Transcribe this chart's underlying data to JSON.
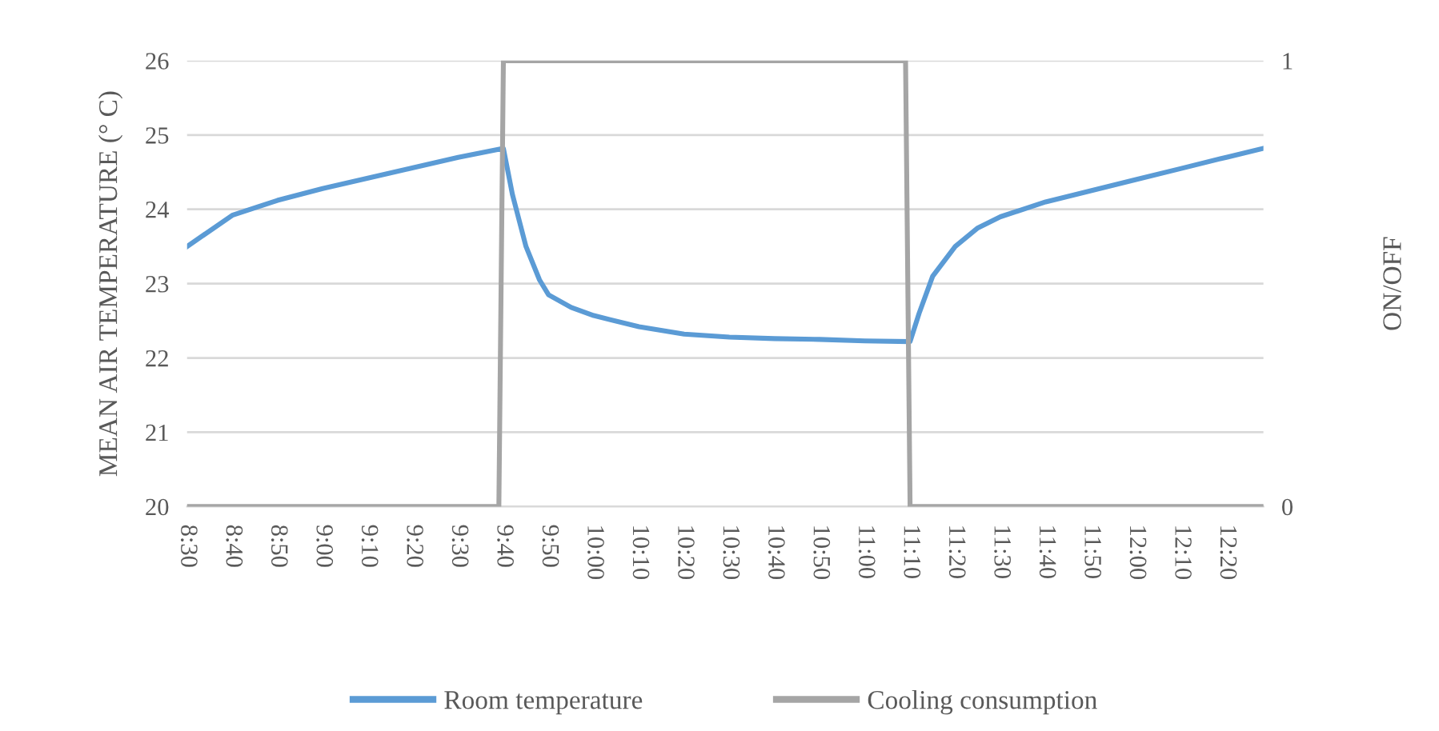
{
  "chart_data": {
    "type": "line",
    "ylabel": "MEAN AIR TEMPERATURE (° C)",
    "y2label": "ON/OFF",
    "xlim": [
      8.5,
      12.47
    ],
    "xticks": [
      {
        "value": 8.5,
        "label": "8:30"
      },
      {
        "value": 8.6667,
        "label": "8:40"
      },
      {
        "value": 8.8333,
        "label": "8:50"
      },
      {
        "value": 9.0,
        "label": "9:00"
      },
      {
        "value": 9.1667,
        "label": "9:10"
      },
      {
        "value": 9.3333,
        "label": "9:20"
      },
      {
        "value": 9.5,
        "label": "9:30"
      },
      {
        "value": 9.6667,
        "label": "9:40"
      },
      {
        "value": 9.8333,
        "label": "9:50"
      },
      {
        "value": 10.0,
        "label": "10:00"
      },
      {
        "value": 10.1667,
        "label": "10:10"
      },
      {
        "value": 10.3333,
        "label": "10:20"
      },
      {
        "value": 10.5,
        "label": "10:30"
      },
      {
        "value": 10.6667,
        "label": "10:40"
      },
      {
        "value": 10.8333,
        "label": "10:50"
      },
      {
        "value": 11.0,
        "label": "11:00"
      },
      {
        "value": 11.1667,
        "label": "11:10"
      },
      {
        "value": 11.3333,
        "label": "11:20"
      },
      {
        "value": 11.5,
        "label": "11:30"
      },
      {
        "value": 11.6667,
        "label": "11:40"
      },
      {
        "value": 11.8333,
        "label": "11:50"
      },
      {
        "value": 12.0,
        "label": "12:00"
      },
      {
        "value": 12.1667,
        "label": "12:10"
      },
      {
        "value": 12.3333,
        "label": "12:20"
      }
    ],
    "ylim": [
      20,
      26
    ],
    "yticks": [
      20,
      21,
      22,
      23,
      24,
      25,
      26
    ],
    "y2lim": [
      0,
      1
    ],
    "y2ticks": [
      0,
      1
    ],
    "grid": "y",
    "legend": "bottom",
    "line_style": "solid",
    "marker": "none",
    "series": [
      {
        "name": "Room temperature",
        "color": "#5b9bd5",
        "x": [
          8.5,
          8.6667,
          8.8333,
          9.0,
          9.1667,
          9.3333,
          9.5,
          9.6667,
          9.7,
          9.75,
          9.8,
          9.8333,
          9.9167,
          10.0,
          10.1667,
          10.3333,
          10.5,
          10.6667,
          10.8333,
          11.0,
          11.1667,
          11.2,
          11.25,
          11.3333,
          11.4167,
          11.5,
          11.6667,
          11.8333,
          12.0,
          12.1667,
          12.3333,
          12.47
        ],
        "values": [
          23.5,
          23.92,
          24.12,
          24.28,
          24.42,
          24.56,
          24.7,
          24.82,
          24.2,
          23.5,
          23.05,
          22.85,
          22.68,
          22.57,
          22.42,
          22.32,
          22.28,
          22.26,
          22.25,
          22.23,
          22.22,
          22.6,
          23.1,
          23.5,
          23.75,
          23.9,
          24.1,
          24.25,
          24.4,
          24.55,
          24.7,
          24.82
        ]
      },
      {
        "name": "Cooling consumption",
        "color": "#a5a5a5",
        "axis": "y2",
        "x": [
          8.5,
          9.65,
          9.6667,
          11.15,
          11.1667,
          12.47
        ],
        "values": [
          0,
          0,
          1,
          1,
          0,
          0
        ]
      }
    ]
  }
}
